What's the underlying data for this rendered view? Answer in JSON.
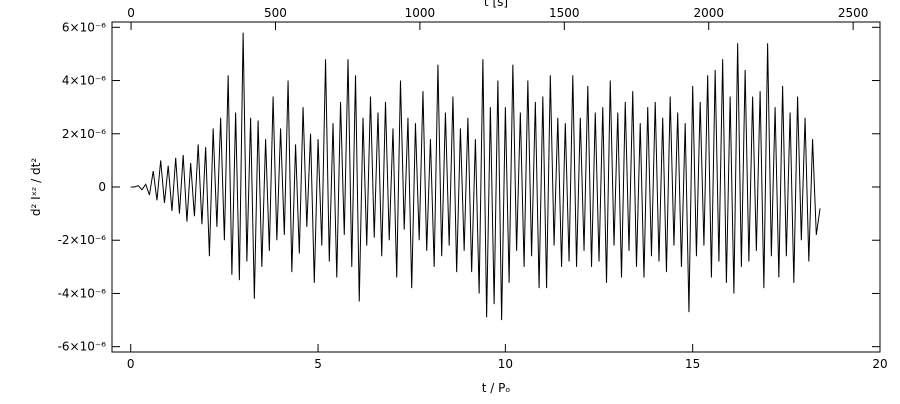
{
  "chart_data": {
    "type": "line",
    "xlabel": "t / Pₒ",
    "ylabel": "d² Iˣᶻ / dt²",
    "x2label": "t [s]",
    "color": "#000000",
    "xlim": [
      -0.5,
      20
    ],
    "xticks": [
      0,
      5,
      10,
      15,
      20
    ],
    "x2lim": [
      -66,
      2593
    ],
    "x2ticks": [
      0,
      500,
      1000,
      1500,
      2000,
      2500
    ],
    "ylim": [
      -6.2e-06,
      6.2e-06
    ],
    "yticks": [
      {
        "value": -6e-06,
        "label": "-6×10⁻⁶"
      },
      {
        "value": -4e-06,
        "label": "-4×10⁻⁶"
      },
      {
        "value": -2e-06,
        "label": "-2×10⁻⁶"
      },
      0,
      {
        "value": 2e-06,
        "label": "2×10⁻⁶"
      },
      {
        "value": 4e-06,
        "label": "4×10⁻⁶"
      },
      {
        "value": 6e-06,
        "label": "6×10⁻⁶"
      }
    ],
    "x": [
      0.0,
      0.1,
      0.2,
      0.3,
      0.4,
      0.5,
      0.6,
      0.7,
      0.8,
      0.9,
      1.0,
      1.1,
      1.2,
      1.3,
      1.4,
      1.5,
      1.6,
      1.7,
      1.8,
      1.9,
      2.0,
      2.1,
      2.2,
      2.3,
      2.4,
      2.5,
      2.6,
      2.7,
      2.8,
      2.9,
      3.0,
      3.1,
      3.2,
      3.3,
      3.4,
      3.5,
      3.6,
      3.7,
      3.8,
      3.9,
      4.0,
      4.1,
      4.2,
      4.3,
      4.4,
      4.5,
      4.6,
      4.7,
      4.8,
      4.9,
      5.0,
      5.1,
      5.2,
      5.3,
      5.4,
      5.5,
      5.6,
      5.7,
      5.8,
      5.9,
      6.0,
      6.1,
      6.2,
      6.3,
      6.4,
      6.5,
      6.6,
      6.7,
      6.8,
      6.9,
      7.0,
      7.1,
      7.2,
      7.3,
      7.4,
      7.5,
      7.6,
      7.7,
      7.8,
      7.9,
      8.0,
      8.1,
      8.2,
      8.3,
      8.4,
      8.5,
      8.6,
      8.7,
      8.8,
      8.9,
      9.0,
      9.1,
      9.2,
      9.3,
      9.4,
      9.5,
      9.6,
      9.7,
      9.8,
      9.9,
      10.0,
      10.1,
      10.2,
      10.3,
      10.4,
      10.5,
      10.6,
      10.7,
      10.8,
      10.9,
      11.0,
      11.1,
      11.2,
      11.3,
      11.4,
      11.5,
      11.6,
      11.7,
      11.8,
      11.9,
      12.0,
      12.1,
      12.2,
      12.3,
      12.4,
      12.5,
      12.6,
      12.7,
      12.8,
      12.9,
      13.0,
      13.1,
      13.2,
      13.3,
      13.4,
      13.5,
      13.6,
      13.7,
      13.8,
      13.9,
      14.0,
      14.1,
      14.2,
      14.3,
      14.4,
      14.5,
      14.6,
      14.7,
      14.8,
      14.9,
      15.0,
      15.1,
      15.2,
      15.3,
      15.4,
      15.5,
      15.6,
      15.7,
      15.8,
      15.9,
      16.0,
      16.1,
      16.2,
      16.3,
      16.4,
      16.5,
      16.6,
      16.7,
      16.8,
      16.9,
      17.0,
      17.1,
      17.2,
      17.3,
      17.4,
      17.5,
      17.6,
      17.7,
      17.8,
      17.9,
      18.0,
      18.1,
      18.2,
      18.3,
      18.4
    ],
    "values": [
      0,
      0,
      5e-08,
      -1e-07,
      1e-07,
      -3e-07,
      6e-07,
      -5e-07,
      1e-06,
      -6e-07,
      8e-07,
      -9e-07,
      1.1e-06,
      -1e-06,
      1.2e-06,
      -1.3e-06,
      9e-07,
      -1.1e-06,
      1.6e-06,
      -1.4e-06,
      1.5e-06,
      -2.6e-06,
      2.2e-06,
      -1.5e-06,
      2.6e-06,
      -2e-06,
      4.2e-06,
      -3.3e-06,
      2.8e-06,
      -3.5e-06,
      5.8e-06,
      -2.8e-06,
      2.6e-06,
      -4.2e-06,
      2.5e-06,
      -3e-06,
      1.8e-06,
      -2.4e-06,
      3.4e-06,
      -2e-06,
      2.2e-06,
      -1.8e-06,
      4e-06,
      -3.2e-06,
      1.6e-06,
      -2.5e-06,
      3e-06,
      -1.5e-06,
      2e-06,
      -3.6e-06,
      1.8e-06,
      -2.2e-06,
      4.8e-06,
      -2.8e-06,
      2.4e-06,
      -3.4e-06,
      3.2e-06,
      -1.8e-06,
      4.8e-06,
      -3e-06,
      4.2e-06,
      -4.3e-06,
      2.6e-06,
      -2.2e-06,
      3.4e-06,
      -1.9e-06,
      2.8e-06,
      -2.6e-06,
      3.2e-06,
      -2e-06,
      2.2e-06,
      -3.4e-06,
      4e-06,
      -1.6e-06,
      2.6e-06,
      -3.8e-06,
      2.4e-06,
      -2e-06,
      3.6e-06,
      -2.4e-06,
      1.8e-06,
      -3e-06,
      4.6e-06,
      -2.6e-06,
      2.8e-06,
      -2.2e-06,
      3.4e-06,
      -3.2e-06,
      2.2e-06,
      -2.4e-06,
      2.6e-06,
      -3.2e-06,
      1.8e-06,
      -4e-06,
      4.8e-06,
      -4.9e-06,
      3e-06,
      -4.4e-06,
      4e-06,
      -5e-06,
      3e-06,
      -3.6e-06,
      4.6e-06,
      -2.4e-06,
      2.8e-06,
      -3e-06,
      4e-06,
      -2.6e-06,
      3.2e-06,
      -3.8e-06,
      3.4e-06,
      -3.8e-06,
      4.2e-06,
      -2.2e-06,
      2.6e-06,
      -3e-06,
      2.4e-06,
      -2.8e-06,
      4.2e-06,
      -3e-06,
      2.6e-06,
      -2.4e-06,
      3.8e-06,
      -3e-06,
      2.8e-06,
      -2.8e-06,
      3e-06,
      -3.6e-06,
      4e-06,
      -2.2e-06,
      2.8e-06,
      -3.4e-06,
      3.2e-06,
      -2.4e-06,
      3.6e-06,
      -3e-06,
      2.4e-06,
      -3.4e-06,
      3e-06,
      -2.6e-06,
      3.2e-06,
      -2.8e-06,
      2.6e-06,
      -3.2e-06,
      3.4e-06,
      -2.2e-06,
      2.8e-06,
      -3e-06,
      2.4e-06,
      -4.7e-06,
      3.8e-06,
      -2.6e-06,
      3.2e-06,
      -2.2e-06,
      4.2e-06,
      -3.4e-06,
      4.4e-06,
      -2.8e-06,
      4.8e-06,
      -3.6e-06,
      3.4e-06,
      -4e-06,
      5.4e-06,
      -3e-06,
      4.4e-06,
      -2.8e-06,
      3.4e-06,
      -2.4e-06,
      3.6e-06,
      -3.8e-06,
      5.4e-06,
      -2.6e-06,
      3e-06,
      -3.4e-06,
      3.8e-06,
      -2.6e-06,
      2.8e-06,
      -3.6e-06,
      3.4e-06,
      -2e-06,
      2.6e-06,
      -2.8e-06,
      1.8e-06,
      -1.8e-06,
      -8e-07
    ]
  }
}
